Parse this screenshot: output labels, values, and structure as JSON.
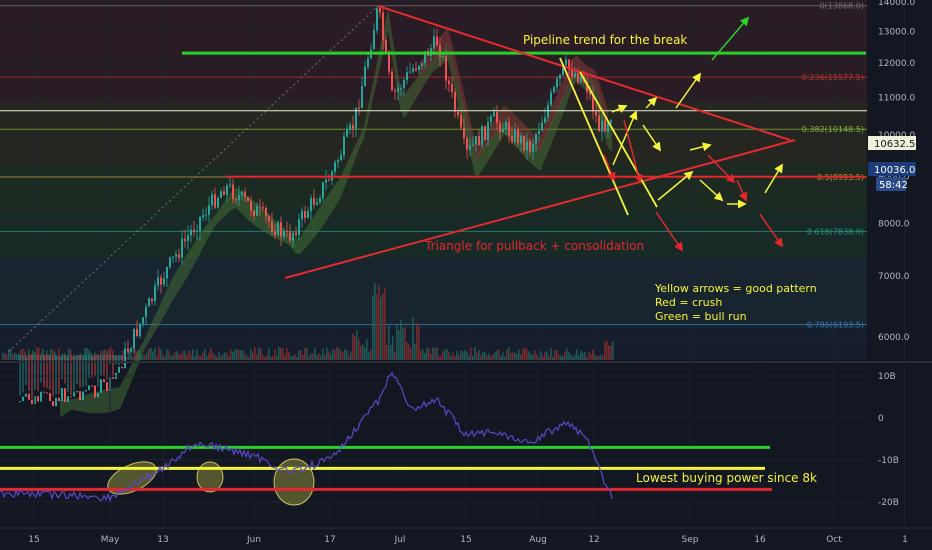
{
  "colors": {
    "background": "#131722",
    "grid": "#1e2230",
    "axis_text": "#b2b5be",
    "green_line": "#2bd12b",
    "yellow_line": "#f5f53a",
    "red_line": "#e6262e",
    "triangle": "#e32b2f",
    "price_badge": "#eef0d8",
    "badge_blue": "#2a4a8a",
    "candle_up": "#26a69a",
    "candle_down": "#ef5350",
    "volume_up": "#1f5f5a",
    "volume_down": "#7a2d2f",
    "indicator_line": "#5b47c9",
    "cloud_green": "#4c7a3a",
    "cloud_red": "#8a3a3a",
    "ellipse": "#b9b35a"
  },
  "annotations": {
    "pipeline_label": "Pipeline trend for the break",
    "triangle_label": "Triangle for pullback + consolidation",
    "legend_yellow": "Yellow arrows = good pattern",
    "legend_red": "Red = crush",
    "legend_green": "Green = bull run",
    "lowest_buying": "Lowest buying power since 8k"
  },
  "price_badges": {
    "current_price": "10632.5",
    "blue_price": "10036.0",
    "countdown": "58:42"
  },
  "chart_data": [
    {
      "type": "line",
      "series_type": "candlestick",
      "x_axis": {
        "tick_labels": [
          "15",
          "May",
          "13",
          "Jun",
          "17",
          "Jul",
          "15",
          "Aug",
          "12",
          "Sep",
          "16",
          "Oct",
          "1"
        ]
      },
      "y_axis": {
        "scale": "log",
        "ylim": [
          5500,
          14000
        ],
        "tick_labels": [
          "14000.0",
          "13000.0",
          "12000.0",
          "11000.0",
          "10000.0",
          "9000.0",
          "8000.0",
          "7000.0",
          "6000.0"
        ]
      },
      "fib_levels": [
        {
          "label": "0(13868.0)",
          "value": 13868.0
        },
        {
          "label": "0.236(11577.5)",
          "value": 11577.5
        },
        {
          "label": "0.382(10148.5)",
          "value": 10148.5
        },
        {
          "label": "0.5(8993.5)",
          "value": 8993.5
        },
        {
          "label": "0.618(7838.0)",
          "value": 7838.0
        },
        {
          "label": "0.786(6193.5)",
          "value": 6193.5
        }
      ],
      "horizontal_lines": [
        {
          "color": "green",
          "value": 12300
        },
        {
          "color": "red",
          "value": 9000
        }
      ],
      "price_path": [
        {
          "x": "Apr 15",
          "y": 5100
        },
        {
          "x": "May 1",
          "y": 5300
        },
        {
          "x": "May 13",
          "y": 7000
        },
        {
          "x": "May 20",
          "y": 8000
        },
        {
          "x": "May 26",
          "y": 8800
        },
        {
          "x": "Jun 3",
          "y": 8300
        },
        {
          "x": "Jun 10",
          "y": 7700
        },
        {
          "x": "Jun 17",
          "y": 9000
        },
        {
          "x": "Jun 22",
          "y": 10300
        },
        {
          "x": "Jun 26",
          "y": 13800
        },
        {
          "x": "Jun 30",
          "y": 11000
        },
        {
          "x": "Jul 5",
          "y": 11800
        },
        {
          "x": "Jul 10",
          "y": 12700
        },
        {
          "x": "Jul 17",
          "y": 9500
        },
        {
          "x": "Jul 22",
          "y": 10400
        },
        {
          "x": "Jul 31",
          "y": 9700
        },
        {
          "x": "Aug 6",
          "y": 11900
        },
        {
          "x": "Aug 10",
          "y": 11500
        },
        {
          "x": "Aug 14",
          "y": 10100
        },
        {
          "x": "Aug 17",
          "y": 10630
        }
      ]
    },
    {
      "type": "line",
      "series_type": "indicator",
      "y_axis": {
        "ylim": [
          -25,
          15
        ],
        "tick_labels": [
          "10B",
          "0",
          "-10B",
          "-20B"
        ]
      },
      "horizontal_lines": [
        {
          "color": "green",
          "value": -7
        },
        {
          "color": "yellow",
          "value": -12
        },
        {
          "color": "red",
          "value": -17
        }
      ],
      "values": [
        {
          "x": "Apr 15",
          "y": -18
        },
        {
          "x": "May 1",
          "y": -19
        },
        {
          "x": "May 13",
          "y": -12
        },
        {
          "x": "May 20",
          "y": -6
        },
        {
          "x": "Jun 3",
          "y": -9
        },
        {
          "x": "Jun 10",
          "y": -13
        },
        {
          "x": "Jun 17",
          "y": -10
        },
        {
          "x": "Jun 22",
          "y": -3
        },
        {
          "x": "Jun 26",
          "y": 4
        },
        {
          "x": "Jun 30",
          "y": 11
        },
        {
          "x": "Jul 5",
          "y": 2
        },
        {
          "x": "Jul 10",
          "y": 4
        },
        {
          "x": "Jul 17",
          "y": -4
        },
        {
          "x": "Jul 22",
          "y": -3
        },
        {
          "x": "Jul 31",
          "y": -6
        },
        {
          "x": "Aug 6",
          "y": -1
        },
        {
          "x": "Aug 10",
          "y": -4
        },
        {
          "x": "Aug 14",
          "y": -13
        },
        {
          "x": "Aug 17",
          "y": -19
        }
      ]
    }
  ]
}
